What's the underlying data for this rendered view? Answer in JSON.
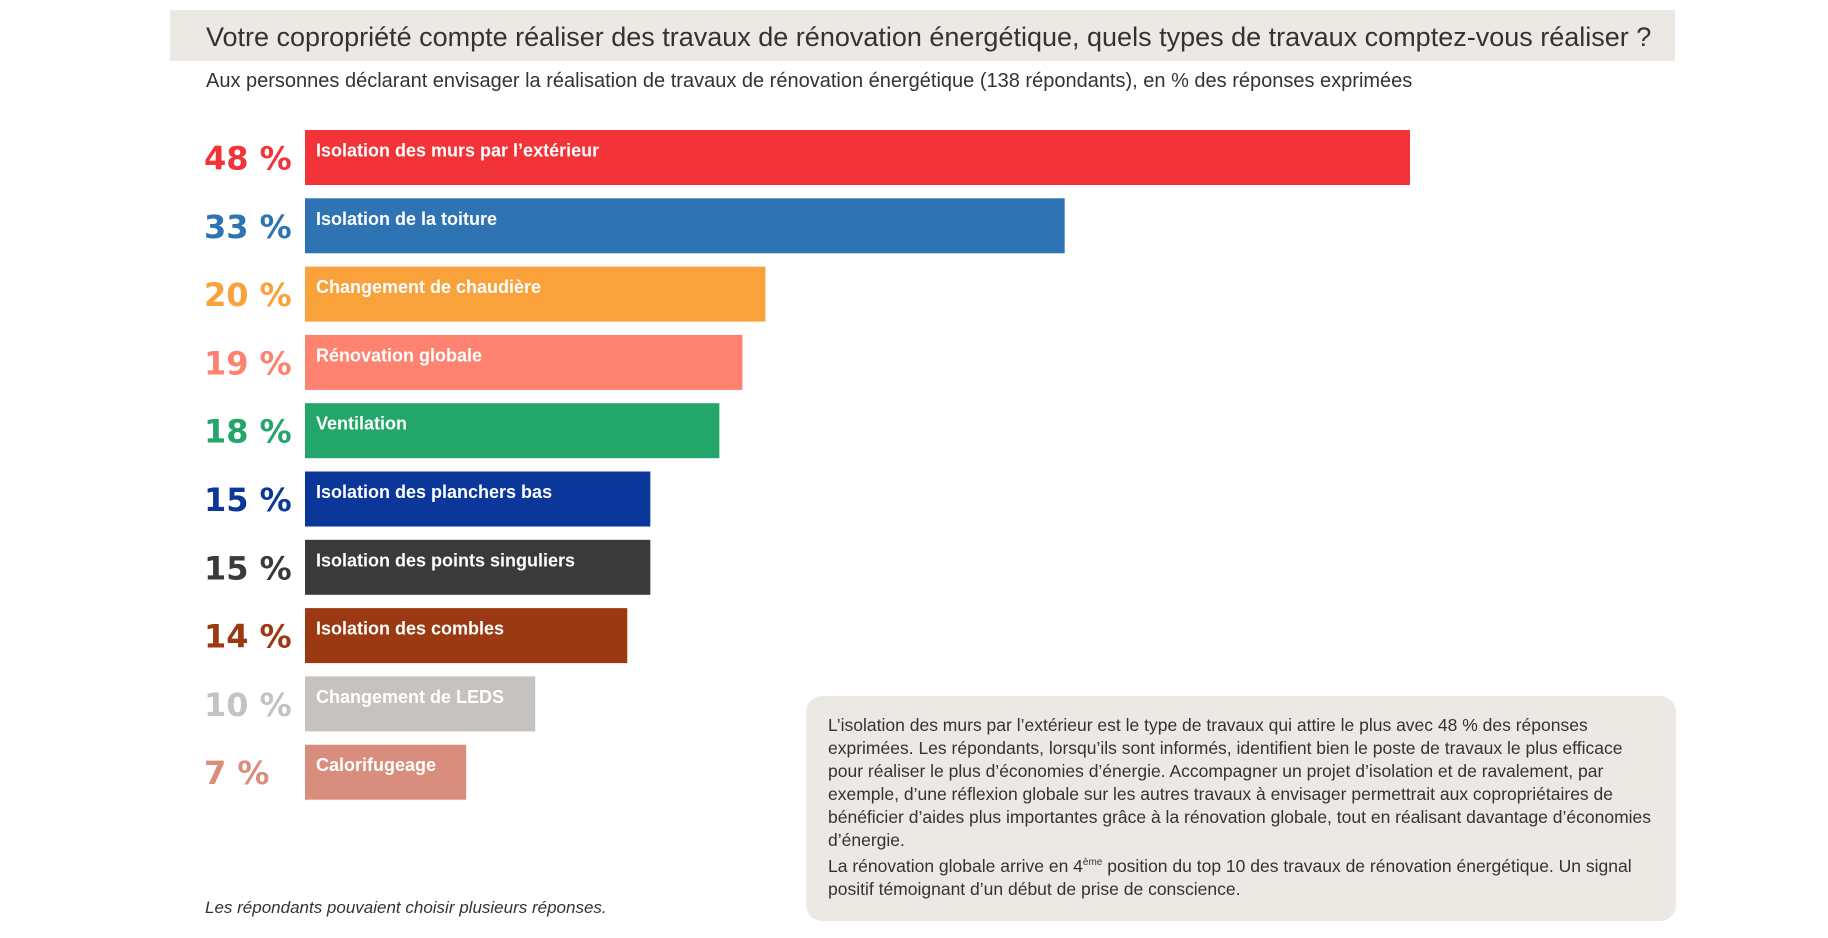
{
  "header": {
    "title": "Votre copropriété compte réaliser des travaux de rénovation énergétique, quels types de travaux comptez-vous réaliser ?",
    "subtitle": "Aux personnes déclarant envisager la réalisation de travaux de rénovation énergétique (138 répondants), en % des réponses exprimées"
  },
  "chart_data": {
    "type": "bar",
    "orientation": "horizontal",
    "unit": "%",
    "xlim": [
      0,
      48
    ],
    "grid": false,
    "categories": [
      "Isolation des murs par l’extérieur",
      "Isolation de la toiture",
      "Changement de chaudière",
      "Rénovation globale",
      "Ventilation",
      "Isolation des planchers bas",
      "Isolation des points singuliers",
      "Isolation des combles",
      "Changement de LEDS",
      "Calorifugeage"
    ],
    "values": [
      48,
      33,
      20,
      19,
      18,
      15,
      15,
      14,
      10,
      7
    ],
    "value_labels": [
      "48 %",
      "33 %",
      "20 %",
      "19 %",
      "18 %",
      "15 %",
      "15 %",
      "14 %",
      "10 %",
      "7 %"
    ],
    "colors": [
      "#f23338",
      "#2e74b5",
      "#f9a13a",
      "#fd8270",
      "#22a66a",
      "#0b379b",
      "#3a3a3a",
      "#9b3a12",
      "#c6c2bf",
      "#d98d7d"
    ]
  },
  "footnote": "Les répondants pouvaient choisir plusieurs réponses.",
  "comment": {
    "p1": "L’isolation des murs par l’extérieur est le type de travaux qui attire le plus avec 48 % des réponses exprimées. Les répondants, lorsqu’ils sont informés, identifient bien le poste de travaux le plus efficace pour réaliser le plus d’économies d’énergie. Accompagner un projet d’isolation et de ravalement, par exemple, d’une réflexion globale sur les autres travaux à envisager permettrait aux copropriétaires de bénéficier d’aides plus importantes grâce à la rénovation globale, tout en réalisant davantage d’économies d’énergie.",
    "p2_before": "La rénovation globale arrive en 4",
    "p2_sup": "ème",
    "p2_after": " position du top 10 des travaux de rénovation énergétique. Un signal positif témoignant d’un début de prise de conscience."
  }
}
